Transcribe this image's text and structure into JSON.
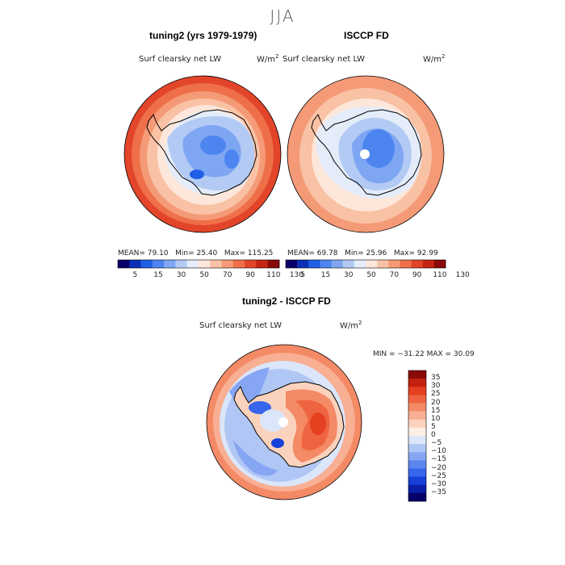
{
  "season": "JJA",
  "panels": {
    "model": {
      "title": "tuning2 (yrs 1979-1979)",
      "variable": "Surf clearsky net LW",
      "unit_base": "W/m",
      "unit_exp": "2",
      "stats": {
        "mean_label": "MEAN=",
        "mean": "79.10",
        "min_label": "Min=",
        "min": "25.40",
        "max_label": "Max=",
        "max": "115.25"
      }
    },
    "obs": {
      "title": "ISCCP FD",
      "variable": "Surf clearsky net LW",
      "unit_base": "W/m",
      "unit_exp": "2",
      "stats": {
        "mean_label": "MEAN=",
        "mean": "69.78",
        "min_label": "Min=",
        "min": "25.96",
        "max_label": "Max=",
        "max": "92.99"
      }
    },
    "diff": {
      "title": "tuning2 - ISCCP FD",
      "variable": "Surf clearsky net LW",
      "unit_base": "W/m",
      "unit_exp": "2",
      "range_text": "MIN = −31.22  MAX =  30.09"
    }
  },
  "colors": {
    "abs_scale": [
      "#08006a",
      "#0c2fb4",
      "#1f5fe6",
      "#4d85f0",
      "#7fa6f2",
      "#b3cbf4",
      "#e4ecf9",
      "#fde7da",
      "#f9c2a5",
      "#f59a77",
      "#ee6f48",
      "#e2452a",
      "#c52414",
      "#8a0a0a"
    ],
    "diff_scale": [
      "#08006a",
      "#0a1ea8",
      "#1640d8",
      "#3566ec",
      "#5b86f0",
      "#86a6f3",
      "#b0c7f5",
      "#dbe6fa",
      "#fdeee4",
      "#fbd2bd",
      "#f8af93",
      "#f48a66",
      "#ef6440",
      "#e5401f",
      "#c32010",
      "#8a0a0a"
    ],
    "land_outline": "#000000"
  },
  "chart_data": [
    {
      "type": "heatmap",
      "title": "tuning2 (yrs 1979-1979)",
      "subtitle": "Surf clearsky net LW (W/m2)",
      "projection": "south polar stereographic",
      "colorbar": {
        "levels": [
          5,
          15,
          30,
          50,
          70,
          90,
          110,
          130
        ],
        "orientation": "horizontal"
      },
      "summary": {
        "mean": 79.1,
        "min": 25.4,
        "max": 115.25
      }
    },
    {
      "type": "heatmap",
      "title": "ISCCP FD",
      "subtitle": "Surf clearsky net LW (W/m2)",
      "projection": "south polar stereographic",
      "colorbar": {
        "levels": [
          5,
          15,
          30,
          50,
          70,
          90,
          110,
          130
        ],
        "orientation": "horizontal"
      },
      "summary": {
        "mean": 69.78,
        "min": 25.96,
        "max": 92.99
      }
    },
    {
      "type": "heatmap",
      "title": "tuning2 - ISCCP FD",
      "subtitle": "Surf clearsky net LW (W/m2)",
      "projection": "south polar stereographic",
      "colorbar": {
        "levels": [
          "35",
          "30",
          "25",
          "20",
          "15",
          "10",
          "5",
          "0",
          "−5",
          "−10",
          "−15",
          "−20",
          "−25",
          "−30",
          "−35"
        ],
        "orientation": "vertical"
      },
      "summary": {
        "min": -31.22,
        "max": 30.09
      }
    }
  ]
}
